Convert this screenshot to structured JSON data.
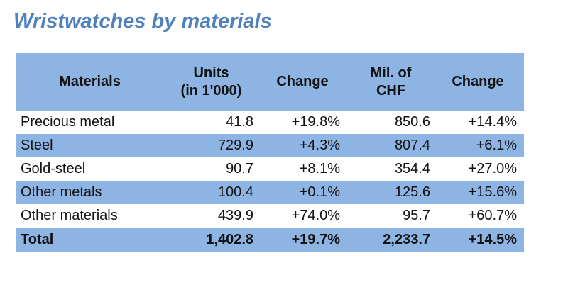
{
  "title": "Wristwatches by materials",
  "colors": {
    "title_blue": "#4f81bd",
    "band_blue": "#8db4e2",
    "text": "#121212",
    "background": "#ffffff"
  },
  "chart_data": {
    "type": "table",
    "title": "Wristwatches by materials",
    "columns": [
      "Materials",
      "Units (in 1'000)",
      "Change",
      "Mil. of CHF",
      "Change"
    ],
    "header_display": [
      "Materials",
      "Units\n(in 1'000)",
      "Change",
      "Mil. of\nCHF",
      "Change"
    ],
    "rows": [
      [
        "Precious metal",
        "41.8",
        "+19.8%",
        "850.6",
        "+14.4%"
      ],
      [
        "Steel",
        "729.9",
        "+4.3%",
        "807.4",
        "+6.1%"
      ],
      [
        "Gold-steel",
        "90.7",
        "+8.1%",
        "354.4",
        "+27.0%"
      ],
      [
        "Other metals",
        "100.4",
        "+0.1%",
        "125.6",
        "+15.6%"
      ],
      [
        "Other materials",
        "439.9",
        "+74.0%",
        "95.7",
        "+60.7%"
      ]
    ],
    "total_row": [
      "Total",
      "1,402.8",
      "+19.7%",
      "2,233.7",
      "+14.5%"
    ],
    "layout": {
      "banding": "alternate rows shaded blue (Steel, Other metals, Total)",
      "numeric_alignment": "right",
      "header_alignment": "center"
    }
  }
}
